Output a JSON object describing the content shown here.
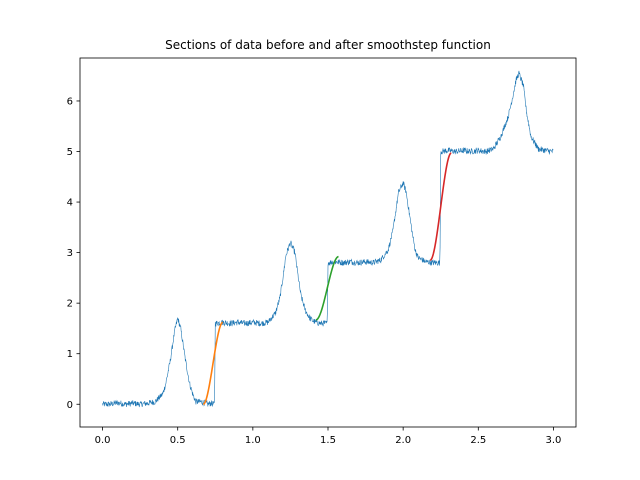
{
  "chart_data": {
    "type": "line",
    "title": "Sections of data before and after smoothstep function",
    "xlabel": "",
    "ylabel": "",
    "xlim": [
      -0.15,
      3.15
    ],
    "ylim": [
      -0.45,
      6.85
    ],
    "xticks": [
      0.0,
      0.5,
      1.0,
      1.5,
      2.0,
      2.5,
      3.0
    ],
    "xtick_labels": [
      "0.0",
      "0.5",
      "1.0",
      "1.5",
      "2.0",
      "2.5",
      "3.0"
    ],
    "yticks": [
      0,
      1,
      2,
      3,
      4,
      5,
      6
    ],
    "ytick_labels": [
      "0",
      "1",
      "2",
      "3",
      "4",
      "5",
      "6"
    ],
    "grid": false,
    "legend": "none",
    "series": [
      {
        "color": "#1f77b4",
        "style": "noisy-thin",
        "x": [
          0.0,
          0.05,
          0.1,
          0.15,
          0.2,
          0.25,
          0.3,
          0.35,
          0.4,
          0.42,
          0.45,
          0.48,
          0.5,
          0.52,
          0.55,
          0.58,
          0.6,
          0.62,
          0.65,
          0.68,
          0.7,
          0.72,
          0.74,
          0.745,
          0.75,
          0.8,
          0.85,
          0.9,
          0.95,
          1.0,
          1.05,
          1.1,
          1.15,
          1.18,
          1.2,
          1.22,
          1.25,
          1.28,
          1.3,
          1.32,
          1.35,
          1.38,
          1.4,
          1.42,
          1.45,
          1.49,
          1.495,
          1.5,
          1.55,
          1.6,
          1.65,
          1.7,
          1.75,
          1.8,
          1.85,
          1.9,
          1.93,
          1.95,
          1.97,
          2.0,
          2.02,
          2.04,
          2.06,
          2.08,
          2.1,
          2.15,
          2.2,
          2.24,
          2.245,
          2.25,
          2.3,
          2.35,
          2.4,
          2.45,
          2.5,
          2.55,
          2.6,
          2.65,
          2.7,
          2.73,
          2.75,
          2.77,
          2.8,
          2.82,
          2.85,
          2.9,
          2.95,
          3.0
        ],
        "y": [
          0.0,
          0.0,
          0.03,
          0.0,
          0.02,
          0.0,
          0.02,
          0.05,
          0.2,
          0.4,
          0.85,
          1.45,
          1.7,
          1.5,
          0.9,
          0.4,
          0.2,
          0.05,
          0.05,
          0.03,
          0.0,
          0.02,
          0.0,
          0.0,
          1.6,
          1.62,
          1.6,
          1.62,
          1.6,
          1.62,
          1.6,
          1.62,
          1.8,
          2.1,
          2.5,
          2.95,
          3.2,
          3.0,
          2.55,
          2.15,
          1.85,
          1.7,
          1.65,
          1.62,
          1.6,
          1.6,
          1.6,
          2.8,
          2.82,
          2.8,
          2.82,
          2.8,
          2.82,
          2.8,
          2.85,
          3.05,
          3.4,
          3.8,
          4.2,
          4.38,
          4.2,
          3.8,
          3.4,
          3.05,
          2.9,
          2.82,
          2.8,
          2.8,
          2.8,
          5.0,
          5.02,
          5.0,
          5.02,
          5.0,
          5.02,
          5.0,
          5.05,
          5.3,
          5.7,
          6.1,
          6.4,
          6.55,
          6.3,
          5.8,
          5.3,
          5.05,
          5.02,
          5.0
        ]
      },
      {
        "color": "#ff7f0e",
        "style": "smoothstep",
        "x": [
          0.67,
          0.8
        ],
        "y": [
          0.0,
          1.62
        ]
      },
      {
        "color": "#2ca02c",
        "style": "smoothstep",
        "x": [
          1.42,
          1.57
        ],
        "y": [
          1.67,
          2.92
        ]
      },
      {
        "color": "#d62728",
        "style": "smoothstep",
        "x": [
          2.18,
          2.32
        ],
        "y": [
          2.85,
          4.97
        ]
      }
    ]
  }
}
